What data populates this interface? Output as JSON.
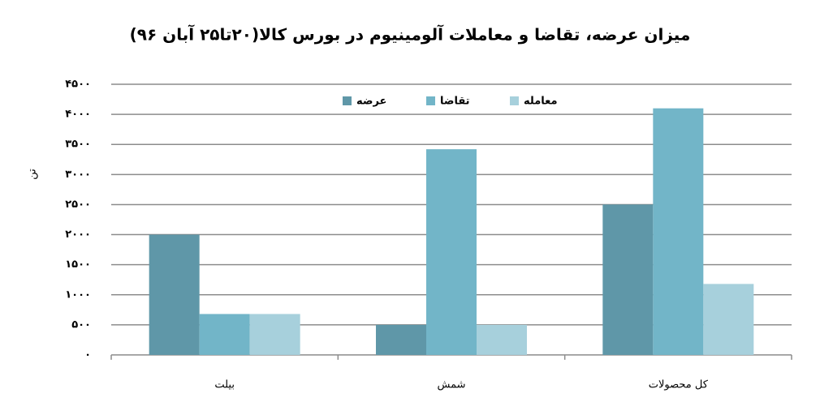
{
  "chart_data": {
    "type": "bar",
    "title": "میزان عرضه، تقاضا و معاملات آلومینیوم در بورس کالا(۲۰تا۲۵ آبان ۹۶)",
    "y_label": "تن",
    "categories": [
      "بیلت",
      "شمش",
      "کل محصولات"
    ],
    "series": [
      {
        "name": "عرضه",
        "color": "#5f97a8",
        "values": [
          2000,
          500,
          2500
        ]
      },
      {
        "name": "تقاضا",
        "color": "#72b5c8",
        "values": [
          680,
          3420,
          4100
        ]
      },
      {
        "name": "معامله",
        "color": "#a7d0dc",
        "values": [
          680,
          500,
          1180
        ]
      }
    ],
    "ylim": [
      0,
      4500
    ],
    "yticks": [
      {
        "value": 0,
        "label": "۰"
      },
      {
        "value": 500,
        "label": "۵۰۰"
      },
      {
        "value": 1000,
        "label": "۱۰۰۰"
      },
      {
        "value": 1500,
        "label": "۱۵۰۰"
      },
      {
        "value": 2000,
        "label": "۲۰۰۰"
      },
      {
        "value": 2500,
        "label": "۲۵۰۰"
      },
      {
        "value": 3000,
        "label": "۳۰۰۰"
      },
      {
        "value": 3500,
        "label": "۳۵۰۰"
      },
      {
        "value": 4000,
        "label": "۴۰۰۰"
      },
      {
        "value": 4500,
        "label": "۴۵۰۰"
      }
    ],
    "grid": true,
    "legend": "top"
  }
}
